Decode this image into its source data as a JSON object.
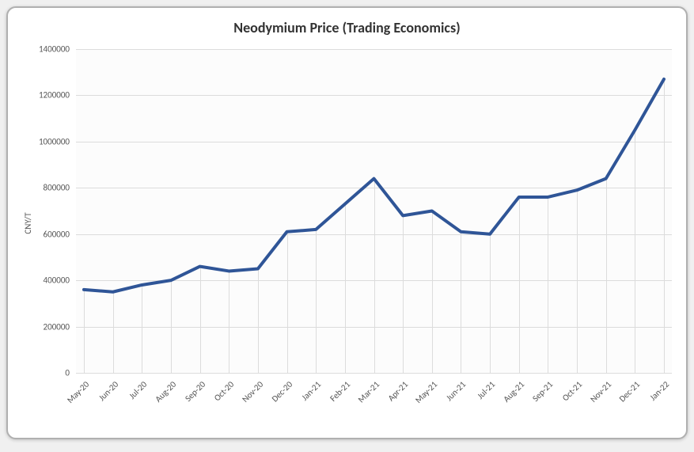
{
  "chart": {
    "type": "line",
    "title": "Neodymium Price (Trading Economics)",
    "ylabel": "CNY/T",
    "title_fontsize": 18,
    "label_fontsize": 11,
    "tick_fontsize": 11,
    "background_color": "#ffffff",
    "plot_background_color": "#fcfcfc",
    "grid_color": "#dcdcdc",
    "line_color": "#2f5597",
    "line_width": 4,
    "frame_border_color": "#b0b0b0",
    "frame_border_radius": 12,
    "ylim": [
      0,
      1400000
    ],
    "ytick_step": 200000,
    "yticks": [
      0,
      200000,
      400000,
      600000,
      800000,
      1000000,
      1200000,
      1400000
    ],
    "categories": [
      "May-20",
      "Jun-20",
      "Jul-20",
      "Aug-20",
      "Sep-20",
      "Oct-20",
      "Nov-20",
      "Dec-20",
      "Jan-21",
      "Feb-21",
      "Mar-21",
      "Apr-21",
      "May-21",
      "Jun-21",
      "Jul-21",
      "Aug-21",
      "Sep-21",
      "Oct-21",
      "Nov-21",
      "Dec-21",
      "Jan-22"
    ],
    "values": [
      360000,
      350000,
      380000,
      400000,
      460000,
      440000,
      450000,
      610000,
      620000,
      730000,
      840000,
      680000,
      700000,
      610000,
      600000,
      760000,
      760000,
      790000,
      840000,
      1050000,
      1270000
    ],
    "x_label_rotation": -45
  }
}
